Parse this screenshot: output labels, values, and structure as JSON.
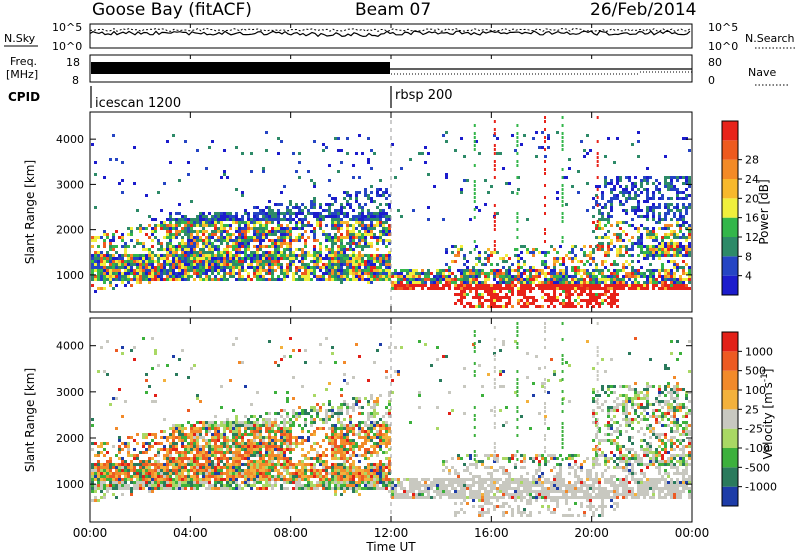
{
  "header": {
    "station": "Goose Bay (fitACF)",
    "beam": "Beam 07",
    "date": "26/Feb/2014"
  },
  "top_panels": {
    "nsky_label": "N.Sky",
    "nsky_ticks": [
      "10^5",
      "10^0"
    ],
    "nsearch_label": "N.Search",
    "nsearch_ticks": [
      "10^5",
      "10^0"
    ],
    "freq_label_1": "Freq.",
    "freq_label_2": "[MHz]",
    "freq_ticks": [
      "18",
      "8"
    ],
    "nave_label": "Nave",
    "nave_ticks": [
      "80",
      "0"
    ],
    "cpid_label": "CPID",
    "cpid_segments": [
      {
        "name": "icescan 1200",
        "start_hour": 0
      },
      {
        "name": "rbsp 200",
        "start_hour": 12
      }
    ]
  },
  "chart_data": [
    {
      "type": "heatmap",
      "title": "",
      "xlabel": "Time UT",
      "ylabel": "Slant Range [km]",
      "xlim": [
        0,
        24
      ],
      "ylim": [
        180,
        4600
      ],
      "x_ticks": [
        "00:00",
        "04:00",
        "08:00",
        "12:00",
        "16:00",
        "20:00",
        "00:00"
      ],
      "y_ticks": [
        1000,
        2000,
        3000,
        4000
      ],
      "colorbar": {
        "label": "Power [dB]",
        "ticks": [
          4,
          8,
          12,
          16,
          20,
          24,
          28
        ],
        "range": [
          0,
          30
        ],
        "colors": [
          "#1c1ccc",
          "#2545c4",
          "#2d8a68",
          "#33b64a",
          "#f0ef3c",
          "#f7b82c",
          "#f38a26",
          "#ee5a1e",
          "#e8231a"
        ]
      }
    },
    {
      "type": "heatmap",
      "title": "",
      "xlabel": "Time UT",
      "ylabel": "Slant Range [km]",
      "xlim": [
        0,
        24
      ],
      "ylim": [
        180,
        4600
      ],
      "x_ticks": [
        "00:00",
        "04:00",
        "08:00",
        "12:00",
        "16:00",
        "20:00",
        "00:00"
      ],
      "y_ticks": [
        1000,
        2000,
        3000,
        4000
      ],
      "colorbar": {
        "label": "Velocity [m s^-1]",
        "ticks": [
          "1000",
          "500",
          "100",
          "25",
          "-25",
          "-100",
          "-500",
          "-1000"
        ],
        "colors": [
          "#1d3ca8",
          "#2a7a5c",
          "#3cb03c",
          "#a9d864",
          "#c8c8c0",
          "#f3b13c",
          "#f28a2a",
          "#ed5a22",
          "#e22018"
        ]
      }
    }
  ]
}
